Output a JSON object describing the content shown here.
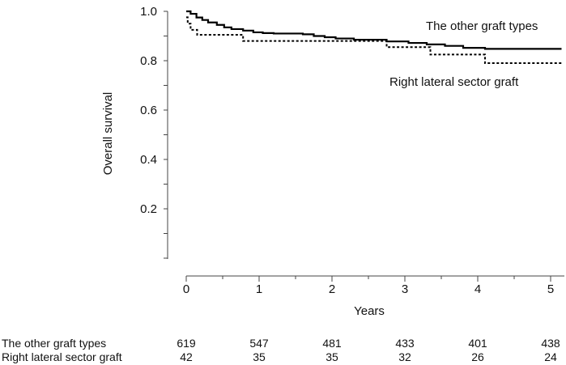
{
  "chart_data": {
    "type": "line",
    "step": true,
    "ylabel": "Overall survival",
    "xlabel": "Years",
    "xlim": [
      0,
      5
    ],
    "ylim": [
      0,
      1.0
    ],
    "xticks": [
      0,
      1,
      2,
      3,
      4,
      5
    ],
    "yticks_labeled": [
      0.2,
      0.4,
      0.6,
      0.8,
      1.0
    ],
    "ytick_labels": [
      "0.2",
      "0.4",
      "0.6",
      "0.8",
      "1.0"
    ],
    "xtick_labels": [
      "0",
      "1",
      "2",
      "3",
      "4",
      "5"
    ],
    "grid": false,
    "series": [
      {
        "name": "The other graft types",
        "line_style": "solid",
        "x": [
          0,
          0.06,
          0.14,
          0.22,
          0.3,
          0.42,
          0.52,
          0.62,
          0.78,
          0.92,
          1.05,
          1.2,
          1.6,
          1.75,
          1.9,
          2.05,
          2.3,
          2.75,
          3.05,
          3.3,
          3.55,
          3.8,
          4.1,
          5.15
        ],
        "y": [
          1.0,
          0.99,
          0.975,
          0.965,
          0.955,
          0.945,
          0.935,
          0.928,
          0.922,
          0.915,
          0.912,
          0.91,
          0.907,
          0.9,
          0.895,
          0.89,
          0.885,
          0.878,
          0.872,
          0.866,
          0.86,
          0.852,
          0.848,
          0.848
        ]
      },
      {
        "name": "Right lateral sector graft",
        "line_style": "dotted",
        "x": [
          0,
          0.02,
          0.06,
          0.15,
          0.78,
          2.75,
          3.35,
          4.1,
          5.15
        ],
        "y": [
          0.976,
          0.95,
          0.925,
          0.905,
          0.88,
          0.855,
          0.825,
          0.79,
          0.79
        ]
      }
    ],
    "annotations": [
      "The other graft types",
      "Right lateral sector graft"
    ]
  },
  "risk_table": {
    "rows": [
      {
        "label": "The other graft types",
        "values": [
          "619",
          "547",
          "481",
          "433",
          "401",
          "438"
        ]
      },
      {
        "label": "Right lateral sector graft",
        "values": [
          "42",
          "35",
          "35",
          "32",
          "26",
          "24"
        ]
      }
    ]
  }
}
